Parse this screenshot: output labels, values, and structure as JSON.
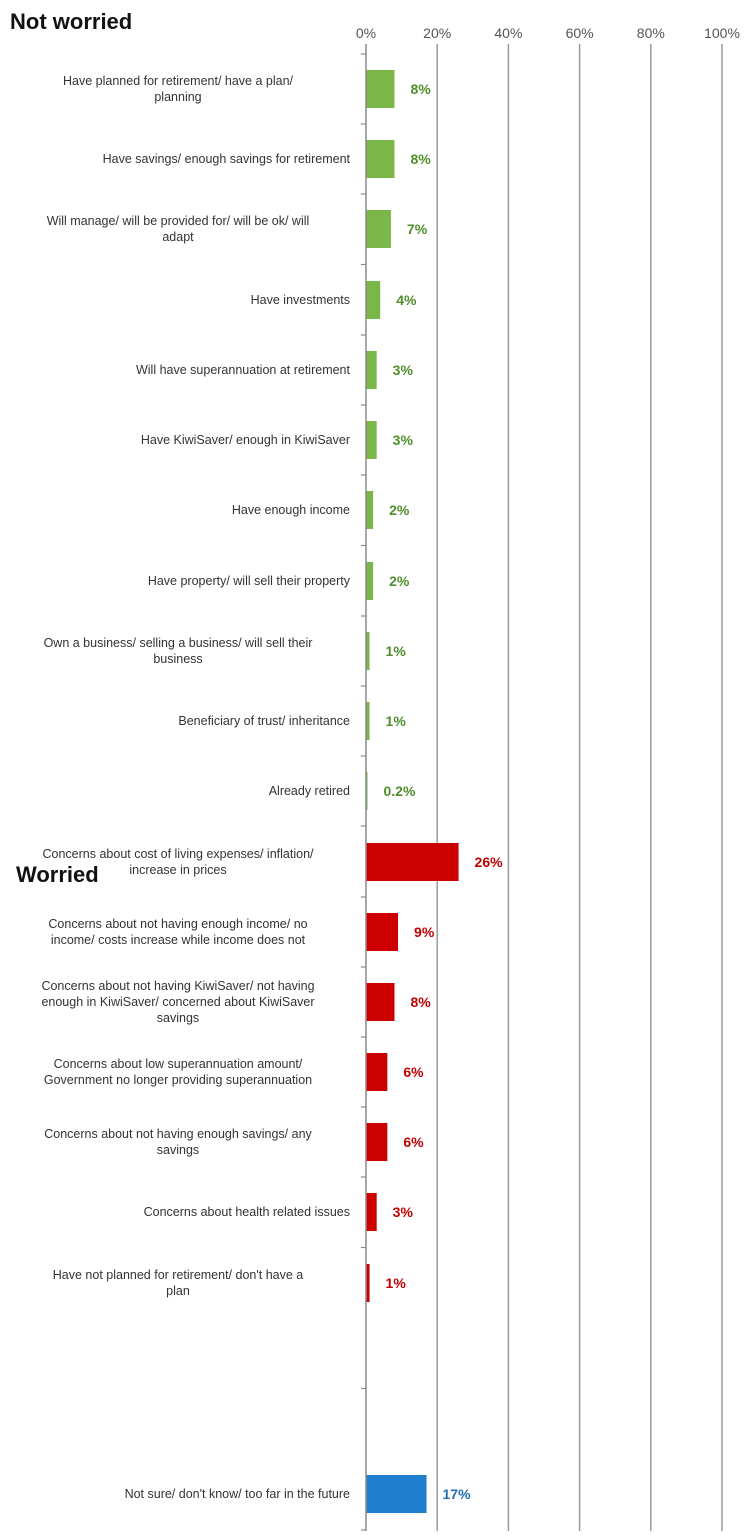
{
  "chart_data": {
    "type": "bar",
    "orientation": "horizontal",
    "title": "",
    "xlim": [
      0,
      100
    ],
    "x_ticks": [
      "0%",
      "20%",
      "40%",
      "60%",
      "80%",
      "100%"
    ],
    "grid": true,
    "sections": [
      {
        "heading": "Not worried",
        "color": "#7ab648",
        "label_color": "#4e8f2a"
      },
      {
        "heading": "Worried",
        "color": "#cc0000",
        "label_color": "#c00000"
      },
      {
        "heading": "",
        "color": "#1f7fce",
        "label_color": "#1f6fb2"
      }
    ],
    "bars": [
      {
        "section": 0,
        "label": [
          "Have planned for retirement/ have a plan/",
          "planning"
        ],
        "value": 8,
        "value_label": "8%"
      },
      {
        "section": 0,
        "label": [
          "Have savings/ enough savings for retirement"
        ],
        "value": 8,
        "value_label": "8%"
      },
      {
        "section": 0,
        "label": [
          "Will manage/ will be provided for/ will be ok/ will",
          "adapt"
        ],
        "value": 7,
        "value_label": "7%"
      },
      {
        "section": 0,
        "label": [
          "Have investments"
        ],
        "value": 4,
        "value_label": "4%"
      },
      {
        "section": 0,
        "label": [
          "Will have superannuation at retirement"
        ],
        "value": 3,
        "value_label": "3%"
      },
      {
        "section": 0,
        "label": [
          "Have KiwiSaver/ enough in KiwiSaver"
        ],
        "value": 3,
        "value_label": "3%"
      },
      {
        "section": 0,
        "label": [
          "Have enough income"
        ],
        "value": 2,
        "value_label": "2%"
      },
      {
        "section": 0,
        "label": [
          "Have property/ will sell their property"
        ],
        "value": 2,
        "value_label": "2%"
      },
      {
        "section": 0,
        "label": [
          "Own a business/ selling a business/ will sell their",
          "business"
        ],
        "value": 1,
        "value_label": "1%"
      },
      {
        "section": 0,
        "label": [
          "Beneficiary of trust/ inheritance"
        ],
        "value": 1,
        "value_label": "1%"
      },
      {
        "section": 0,
        "label": [
          "Already retired"
        ],
        "value": 0.2,
        "value_label": "0.2%"
      },
      {
        "section": 1,
        "label": [
          "Concerns about cost of living expenses/ inflation/",
          "increase in prices"
        ],
        "value": 26,
        "value_label": "26%"
      },
      {
        "section": 1,
        "label": [
          "Concerns about not having enough income/ no",
          "income/ costs increase while income does not"
        ],
        "value": 9,
        "value_label": "9%"
      },
      {
        "section": 1,
        "label": [
          "Concerns about not having KiwiSaver/ not having",
          "enough in KiwiSaver/ concerned about KiwiSaver",
          "savings"
        ],
        "value": 8,
        "value_label": "8%"
      },
      {
        "section": 1,
        "label": [
          "Concerns about low superannuation amount/",
          "Government no longer providing superannuation"
        ],
        "value": 6,
        "value_label": "6%"
      },
      {
        "section": 1,
        "label": [
          "Concerns about not having enough savings/ any",
          "savings"
        ],
        "value": 6,
        "value_label": "6%"
      },
      {
        "section": 1,
        "label": [
          "Concerns about health related issues"
        ],
        "value": 3,
        "value_label": "3%"
      },
      {
        "section": 1,
        "label": [
          "Have not planned for retirement/ don't have a",
          "plan"
        ],
        "value": 1,
        "value_label": "1%"
      },
      {
        "section": 2,
        "label": [
          "Not sure/ don't know/ too far in the future"
        ],
        "value": 17,
        "value_label": "17%"
      }
    ]
  }
}
